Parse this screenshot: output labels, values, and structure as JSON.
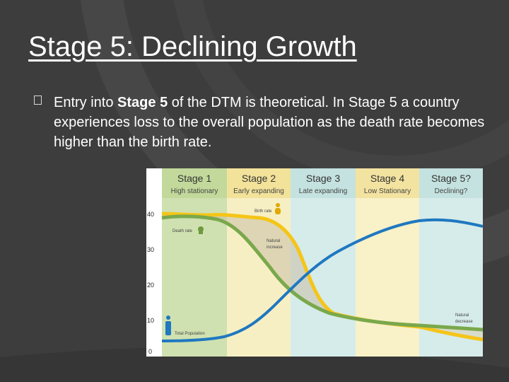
{
  "slide": {
    "title": "Stage 5: Declining Growth",
    "bullet": {
      "pre": "Entry into ",
      "bold": "Stage 5",
      "post": " of the DTM is theoretical. In Stage 5 a country experiences loss to the overall population as the death rate becomes higher than the birth rate."
    }
  },
  "diagram": {
    "y_ticks": [
      "40",
      "30",
      "20",
      "10",
      "0"
    ],
    "stages": [
      {
        "name": "Stage 1",
        "sub": "High stationary"
      },
      {
        "name": "Stage 2",
        "sub": "Early expanding"
      },
      {
        "name": "Stage 3",
        "sub": "Late expanding"
      },
      {
        "name": "Stage 4",
        "sub": "Low Stationary"
      },
      {
        "name": "Stage 5?",
        "sub": "Declining?"
      }
    ],
    "labels": {
      "birth_rate": "Birth rate",
      "death_rate": "Death rate",
      "natural_increase": [
        "Natural",
        "increase"
      ],
      "natural_decrease": [
        "Natural",
        "decrease"
      ],
      "total_population": "Total Population"
    },
    "colors": {
      "birth_rate": "#f5c518",
      "death_rate": "#7aa84c",
      "total_population": "#1f78c0",
      "stage_fills": [
        "#cfe1b0",
        "#f7efc4",
        "#d6ecea",
        "#f9f1c8",
        "#d6ecea"
      ],
      "header_fills": [
        "#c2d99b",
        "#f2e29a",
        "#c4e2df",
        "#f3e3a0",
        "#c4e2df"
      ]
    }
  }
}
